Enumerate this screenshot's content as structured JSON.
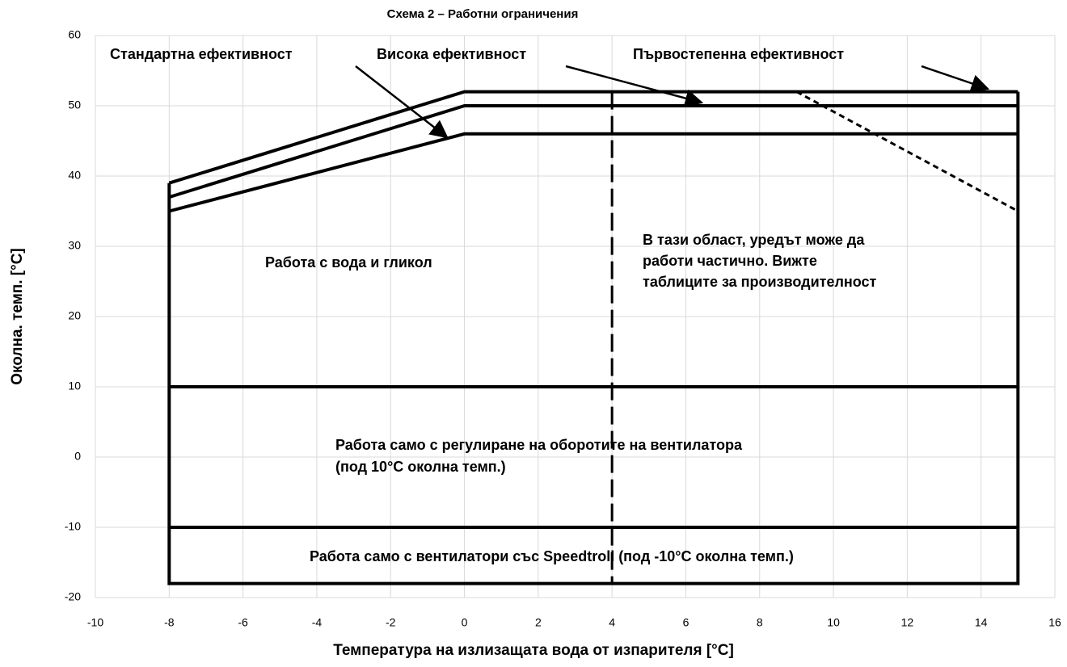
{
  "chart_data": {
    "type": "line",
    "title": "Схема 2 – Работни ограничения",
    "x_label": "Температура на излизащата вода от изпарителя [°C]",
    "y_label": "Околна. темп. [°C]",
    "xlim": [
      -10,
      16
    ],
    "xticks": [
      -10,
      -8,
      -6,
      -4,
      -2,
      0,
      2,
      4,
      6,
      8,
      10,
      12,
      14,
      16
    ],
    "ylim": [
      -20,
      60
    ],
    "yticks": [
      -20,
      -10,
      0,
      10,
      20,
      30,
      40,
      50,
      60
    ],
    "grid": true,
    "series": [
      {
        "name": "Стандартна ефективност",
        "color": "#000000",
        "style": "solid",
        "x": [
          -8,
          0,
          15
        ],
        "values": [
          35,
          46,
          46
        ]
      },
      {
        "name": "Висока ефективност",
        "color": "#000000",
        "style": "solid",
        "x": [
          -8,
          0,
          15
        ],
        "values": [
          37,
          50,
          50
        ]
      },
      {
        "name": "Първостепенна ефективност",
        "color": "#000000",
        "style": "solid",
        "x": [
          -8,
          0,
          15
        ],
        "values": [
          39,
          52,
          52
        ]
      },
      {
        "color": "#000000",
        "style": "solid",
        "x": [
          -8,
          -8,
          15,
          15
        ],
        "values": [
          39,
          -18,
          -18,
          52
        ]
      },
      {
        "color": "#000000",
        "style": "solid",
        "x": [
          -8,
          15
        ],
        "values": [
          10,
          10
        ]
      },
      {
        "color": "#000000",
        "style": "solid",
        "x": [
          -8,
          15
        ],
        "values": [
          -10,
          -10
        ]
      },
      {
        "color": "#000000",
        "style": "dashed",
        "x": [
          4,
          4
        ],
        "values": [
          52,
          -18
        ]
      },
      {
        "color": "#000000",
        "style": "dotted",
        "x": [
          9,
          15
        ],
        "values": [
          52,
          35
        ]
      }
    ],
    "annotations": [
      [
        "Работа с вода и гликол"
      ],
      [
        "В тази област, уредът може да",
        "работи частично. Вижте",
        "таблиците за производителност"
      ],
      [
        "Работа само с регулиране на оборотите на вентилатора",
        "(под 10°C околна темп.)"
      ],
      [
        "Работа само с вентилатори със Speedtroll (под -10°C околна темп.)"
      ]
    ]
  }
}
